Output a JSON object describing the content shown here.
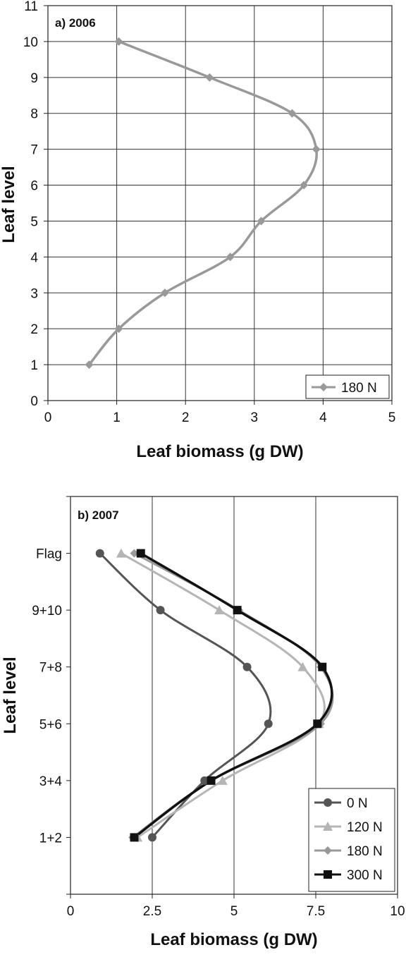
{
  "chart_data": [
    {
      "type": "line",
      "panel_label": "a) 2006",
      "xlabel": "Leaf  biomass (g DW)",
      "ylabel": "Leaf level",
      "xlim": [
        0,
        5
      ],
      "ylim": [
        0,
        11
      ],
      "x_ticks": [
        "0",
        "1",
        "2",
        "3",
        "4",
        "5"
      ],
      "y_ticks": [
        "0",
        "1",
        "2",
        "3",
        "4",
        "5",
        "6",
        "7",
        "8",
        "9",
        "10",
        "11"
      ],
      "grid": "vertical and horizontal",
      "legend_position": "bottom-right",
      "series": [
        {
          "name": "180 N",
          "color": "#999999",
          "marker": "diamond",
          "points": [
            {
              "x": 0.6,
              "y": 1
            },
            {
              "x": 1.03,
              "y": 2
            },
            {
              "x": 1.7,
              "y": 3
            },
            {
              "x": 2.65,
              "y": 4
            },
            {
              "x": 3.1,
              "y": 5
            },
            {
              "x": 3.72,
              "y": 6
            },
            {
              "x": 3.9,
              "y": 7
            },
            {
              "x": 3.55,
              "y": 8
            },
            {
              "x": 2.35,
              "y": 9
            },
            {
              "x": 1.03,
              "y": 10
            }
          ]
        }
      ]
    },
    {
      "type": "line",
      "panel_label": "b) 2007",
      "xlabel": "Leaf  biomass (g DW)",
      "ylabel": "Leaf level",
      "xlim": [
        0,
        10
      ],
      "ylim": [
        0,
        7
      ],
      "x_ticks": [
        "0",
        "2.5",
        "5",
        "7.5",
        "10"
      ],
      "y_ticks": [
        "1+2",
        "3+4",
        "5+6",
        "7+8",
        "9+10",
        "Flag"
      ],
      "grid": "vertical only",
      "legend_position": "bottom-right",
      "series": [
        {
          "name": "0 N",
          "color": "#555555",
          "marker": "circle",
          "points": [
            {
              "x": 2.5,
              "y": 1
            },
            {
              "x": 4.1,
              "y": 2
            },
            {
              "x": 6.05,
              "y": 3
            },
            {
              "x": 5.4,
              "y": 4
            },
            {
              "x": 2.75,
              "y": 5
            },
            {
              "x": 0.9,
              "y": 6
            }
          ]
        },
        {
          "name": "120 N",
          "color": "#b5b5b5",
          "marker": "triangle",
          "points": [
            {
              "x": 2.05,
              "y": 1
            },
            {
              "x": 4.65,
              "y": 2
            },
            {
              "x": 7.6,
              "y": 3
            },
            {
              "x": 7.1,
              "y": 4
            },
            {
              "x": 4.55,
              "y": 5
            },
            {
              "x": 1.55,
              "y": 6
            }
          ]
        },
        {
          "name": "180 N",
          "color": "#999999",
          "marker": "diamond",
          "points": [
            {
              "x": 1.9,
              "y": 1
            },
            {
              "x": 4.3,
              "y": 2
            },
            {
              "x": 7.65,
              "y": 3
            },
            {
              "x": 7.65,
              "y": 4
            },
            {
              "x": 5.15,
              "y": 5
            },
            {
              "x": 1.95,
              "y": 6
            }
          ]
        },
        {
          "name": "300 N",
          "color": "#111111",
          "marker": "square",
          "points": [
            {
              "x": 1.95,
              "y": 1
            },
            {
              "x": 4.3,
              "y": 2
            },
            {
              "x": 7.55,
              "y": 3
            },
            {
              "x": 7.7,
              "y": 4
            },
            {
              "x": 5.1,
              "y": 5
            },
            {
              "x": 2.15,
              "y": 6
            }
          ]
        }
      ]
    }
  ]
}
